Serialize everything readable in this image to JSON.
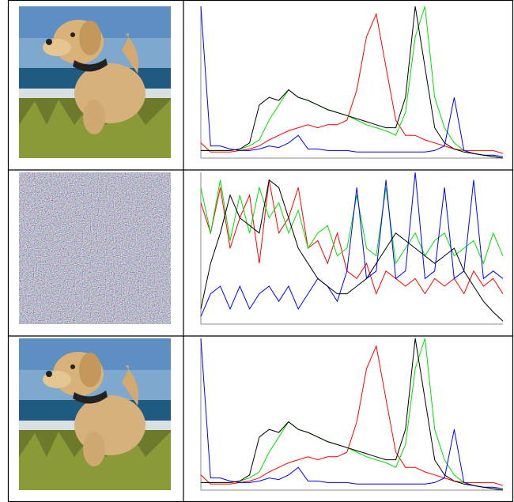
{
  "chart_data": [
    {
      "type": "line",
      "ylim": [
        0,
        100
      ],
      "series": [
        {
          "color": "#ff0000",
          "values": [
            10,
            4,
            4,
            4,
            5,
            6,
            8,
            12,
            15,
            18,
            20,
            22,
            20,
            22,
            22,
            25,
            45,
            80,
            95,
            60,
            25,
            15,
            15,
            12,
            10,
            8,
            6,
            5,
            5,
            5,
            5,
            3
          ]
        },
        {
          "color": "#00e000",
          "values": [
            5,
            5,
            5,
            5,
            6,
            8,
            12,
            25,
            35,
            45,
            40,
            38,
            35,
            32,
            30,
            28,
            25,
            22,
            20,
            18,
            15,
            30,
            80,
            100,
            40,
            20,
            10,
            5,
            3,
            2,
            1,
            0
          ]
        },
        {
          "color": "#0000ff",
          "values": [
            100,
            8,
            8,
            6,
            5,
            5,
            6,
            8,
            7,
            10,
            15,
            6,
            6,
            5,
            5,
            5,
            4,
            4,
            4,
            4,
            4,
            4,
            4,
            4,
            5,
            8,
            40,
            5,
            3,
            2,
            2,
            1
          ]
        },
        {
          "color": "#000000",
          "values": [
            5,
            5,
            5,
            5,
            6,
            10,
            35,
            40,
            38,
            45,
            40,
            38,
            35,
            32,
            30,
            28,
            26,
            24,
            22,
            20,
            20,
            40,
            100,
            60,
            20,
            10,
            6,
            4,
            3,
            2,
            1,
            0
          ]
        }
      ]
    },
    {
      "type": "line",
      "ylim": [
        0,
        100
      ],
      "series": [
        {
          "color": "#ff0000",
          "values": [
            80,
            60,
            90,
            50,
            70,
            85,
            40,
            95,
            60,
            70,
            90,
            50,
            55,
            40,
            60,
            35,
            30,
            40,
            20,
            35,
            30,
            25,
            30,
            20,
            30,
            25,
            30,
            20,
            35,
            25,
            30,
            20
          ]
        },
        {
          "color": "#00e000",
          "values": [
            90,
            60,
            95,
            55,
            85,
            60,
            90,
            70,
            80,
            60,
            75,
            50,
            60,
            65,
            45,
            50,
            85,
            50,
            45,
            90,
            40,
            50,
            60,
            45,
            55,
            60,
            45,
            50,
            55,
            40,
            60,
            45
          ]
        },
        {
          "color": "#0000ff",
          "values": [
            5,
            20,
            25,
            10,
            25,
            10,
            20,
            25,
            15,
            25,
            10,
            20,
            30,
            25,
            15,
            35,
            90,
            30,
            35,
            95,
            30,
            35,
            100,
            30,
            35,
            90,
            30,
            35,
            95,
            30,
            35,
            30
          ]
        },
        {
          "color": "#000000",
          "values": [
            10,
            40,
            60,
            85,
            70,
            65,
            60,
            95,
            90,
            70,
            50,
            40,
            30,
            25,
            20,
            20,
            25,
            30,
            40,
            50,
            60,
            55,
            50,
            45,
            40,
            45,
            50,
            35,
            25,
            15,
            8,
            2
          ]
        }
      ]
    },
    {
      "type": "line",
      "ylim": [
        0,
        100
      ],
      "series": [
        {
          "color": "#ff0000",
          "values": [
            10,
            4,
            4,
            4,
            5,
            6,
            8,
            12,
            15,
            18,
            20,
            22,
            20,
            22,
            22,
            25,
            45,
            80,
            95,
            60,
            25,
            15,
            15,
            12,
            10,
            8,
            6,
            5,
            5,
            5,
            5,
            3
          ]
        },
        {
          "color": "#00e000",
          "values": [
            5,
            5,
            5,
            5,
            6,
            8,
            12,
            25,
            35,
            45,
            40,
            38,
            35,
            32,
            30,
            28,
            25,
            22,
            20,
            18,
            15,
            30,
            80,
            100,
            40,
            20,
            10,
            5,
            3,
            2,
            1,
            0
          ]
        },
        {
          "color": "#0000ff",
          "values": [
            100,
            8,
            8,
            6,
            5,
            5,
            6,
            8,
            7,
            10,
            15,
            6,
            6,
            5,
            5,
            5,
            4,
            4,
            4,
            4,
            4,
            4,
            4,
            4,
            5,
            8,
            40,
            5,
            3,
            2,
            2,
            1
          ]
        },
        {
          "color": "#000000",
          "values": [
            5,
            5,
            5,
            5,
            6,
            10,
            35,
            40,
            38,
            45,
            40,
            38,
            35,
            32,
            30,
            28,
            26,
            24,
            22,
            20,
            20,
            40,
            100,
            60,
            20,
            10,
            6,
            4,
            3,
            2,
            1,
            0
          ]
        }
      ]
    }
  ]
}
